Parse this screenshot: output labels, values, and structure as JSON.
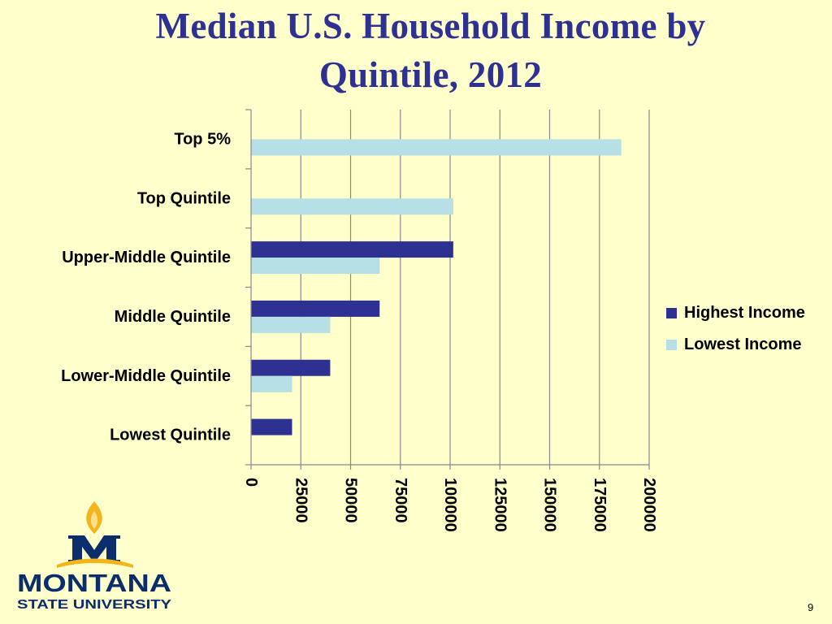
{
  "slide": {
    "title_line1": "Median U.S. Household Income by",
    "title_line2": "Quintile, 2012",
    "page_number": "9"
  },
  "logo": {
    "line1": "MONTANA",
    "line2": "STATE UNIVERSITY",
    "letter": "M"
  },
  "colors": {
    "highest": "#2e3192",
    "lowest": "#b6e0e6",
    "background": "#ffffcc",
    "grid": "#888888",
    "logo_gold": "#f2b51c",
    "logo_blue": "#0b2d6b"
  },
  "chart_data": {
    "type": "bar",
    "orientation": "horizontal",
    "title": "Median U.S. Household Income by Quintile, 2012",
    "categories": [
      "Top 5%",
      "Top Quintile",
      "Upper-Middle Quintile",
      "Middle Quintile",
      "Lower-Middle Quintile",
      "Lowest Quintile"
    ],
    "series": [
      {
        "name": "Highest Income",
        "values": [
          null,
          null,
          101583,
          64582,
          39764,
          20599
        ]
      },
      {
        "name": "Lowest Income",
        "values": [
          186000,
          101583,
          64582,
          39764,
          20599,
          null
        ]
      }
    ],
    "xlim": [
      0,
      200000
    ],
    "xticks": [
      "0",
      "25000",
      "50000",
      "75000",
      "100000",
      "125000",
      "150000",
      "175000",
      "200000"
    ],
    "tick_label_rotation": 90,
    "grid": "vertical",
    "legend": "right"
  }
}
